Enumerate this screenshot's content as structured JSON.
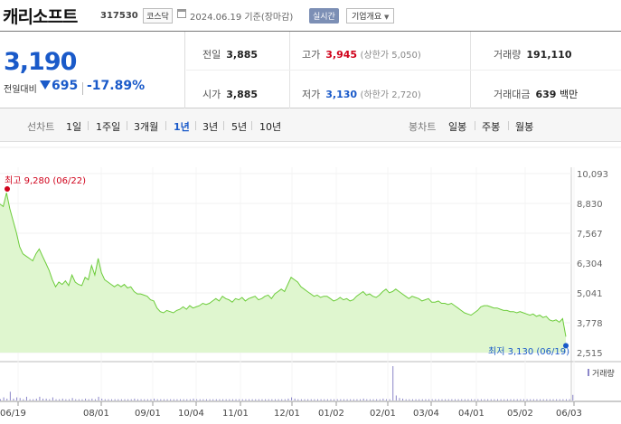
{
  "header": {
    "name": "캐리소프트",
    "code": "317530",
    "market": "코스닥",
    "date": "2024.06.19 기준(장마감)",
    "realtime_label": "실시간",
    "info_label": "기업개요"
  },
  "summary": {
    "price": "3,190",
    "change_label": "전일대비",
    "change_value": "695",
    "change_pct": "-17.89%",
    "prev_close": {
      "label": "전일",
      "value": "3,885"
    },
    "open": {
      "label": "시가",
      "value": "3,885"
    },
    "high": {
      "label": "고가",
      "value": "3,945",
      "sub": "(상한가 5,050)"
    },
    "low": {
      "label": "저가",
      "value": "3,130",
      "sub": "(하한가 2,720)"
    },
    "volume": {
      "label": "거래량",
      "value": "191,110"
    },
    "amount": {
      "label": "거래대금",
      "value": "639",
      "unit": "백만"
    }
  },
  "tabs": {
    "line_label": "선차트",
    "line_periods": [
      "1일",
      "1주일",
      "3개월",
      "1년",
      "3년",
      "5년",
      "10년"
    ],
    "active": "1년",
    "candle_label": "봉차트",
    "candle_periods": [
      "일봉",
      "주봉",
      "월봉"
    ]
  },
  "colors": {
    "blue": "#1a5ac9",
    "red": "#d0021b",
    "fill": "#dff6cf",
    "line": "#6ccc3a"
  },
  "chart_data": {
    "type": "area",
    "high_annotation": "최고 9,280 (06/22)",
    "low_annotation": "최저 3,130 (06/19)",
    "yticks": [
      "10,093",
      "8,830",
      "7,567",
      "6,304",
      "5,041",
      "3,778",
      "2,515"
    ],
    "ylim": [
      2515,
      10093
    ],
    "xticks": [
      "06/19",
      "08/01",
      "09/01",
      "10/04",
      "11/01",
      "12/01",
      "01/02",
      "02/01",
      "03/04",
      "04/01",
      "05/02",
      "06/03"
    ],
    "volume_label": "거래량",
    "series": [
      {
        "values": [
          8800,
          8700,
          9280,
          8600,
          8100,
          7600,
          7000,
          6700,
          6600,
          6500,
          6400,
          6700,
          6900,
          6600,
          6300,
          6000,
          5600,
          5300,
          5500,
          5400,
          5550,
          5350,
          5800,
          5500,
          5400,
          5350,
          5700,
          5600,
          6200,
          5800,
          6500,
          5900,
          5600,
          5500,
          5400,
          5300,
          5400,
          5300,
          5400,
          5250,
          5300,
          5100,
          5000,
          5000,
          4950,
          4900,
          4750,
          4700,
          4400,
          4250,
          4200,
          4300,
          4250,
          4200,
          4300,
          4350,
          4450,
          4350,
          4500,
          4400,
          4450,
          4500,
          4600,
          4550,
          4600,
          4700,
          4800,
          4700,
          4900,
          4800,
          4750,
          4650,
          4800,
          4750,
          4850,
          4700,
          4800,
          4850,
          4900,
          4750,
          4800,
          4900,
          4950,
          4800,
          5000,
          5100,
          5200,
          5100,
          5400,
          5700,
          5600,
          5500,
          5300,
          5200,
          5100,
          5000,
          4900,
          4950,
          4850,
          4900,
          4900,
          4800,
          4700,
          4750,
          4850,
          4750,
          4800,
          4700,
          4750,
          4900,
          5000,
          5100,
          4950,
          5000,
          4900,
          4850,
          4950,
          5100,
          5200,
          5050,
          5100,
          5200,
          5100,
          5000,
          4900,
          4800,
          4900,
          4850,
          4800,
          4700,
          4750,
          4800,
          4650,
          4650,
          4700,
          4600,
          4600,
          4550,
          4600,
          4500,
          4400,
          4300,
          4200,
          4150,
          4100,
          4200,
          4300,
          4450,
          4500,
          4500,
          4450,
          4400,
          4400,
          4350,
          4300,
          4300,
          4250,
          4250,
          4200,
          4250,
          4200,
          4150,
          4100,
          4150,
          4050,
          4100,
          4000,
          4050,
          3900,
          3850,
          3900,
          3800,
          3950,
          3190
        ]
      }
    ],
    "volume": [
      2,
      5,
      3,
      14,
      3,
      5,
      4,
      2,
      6,
      2,
      2,
      3,
      6,
      3,
      3,
      2,
      5,
      2,
      2,
      3,
      2,
      2,
      4,
      2,
      2,
      2,
      3,
      2,
      3,
      2,
      6,
      3,
      2,
      2,
      2,
      2,
      2,
      2,
      2,
      2,
      2,
      3,
      2,
      2,
      2,
      2,
      2,
      3,
      2,
      2,
      2,
      2,
      2,
      2,
      2,
      2,
      2,
      2,
      2,
      3,
      2,
      2,
      2,
      2,
      2,
      2,
      2,
      2,
      2,
      2,
      2,
      2,
      2,
      2,
      2,
      2,
      2,
      2,
      2,
      2,
      2,
      2,
      2,
      2,
      2,
      2,
      2,
      2,
      3,
      5,
      3,
      2,
      2,
      2,
      2,
      2,
      2,
      2,
      2,
      2,
      2,
      2,
      2,
      2,
      2,
      2,
      2,
      2,
      2,
      2,
      2,
      3,
      2,
      2,
      2,
      2,
      2,
      3,
      2,
      2,
      55,
      8,
      4,
      3,
      2,
      2,
      2,
      2,
      2,
      2,
      2,
      2,
      2,
      2,
      2,
      2,
      2,
      2,
      2,
      2,
      2,
      2,
      2,
      2,
      2,
      2,
      2,
      2,
      2,
      2,
      2,
      2,
      2,
      2,
      2,
      2,
      2,
      2,
      2,
      2,
      2,
      2,
      2,
      2,
      2,
      2,
      2,
      2,
      2,
      2,
      2,
      2,
      2,
      2,
      2,
      9
    ]
  }
}
